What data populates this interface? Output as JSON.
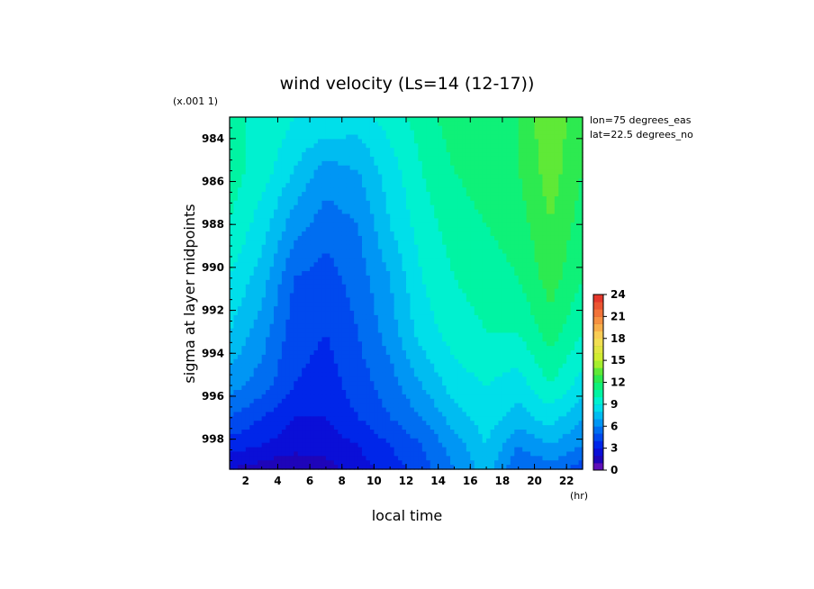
{
  "chart_data": {
    "type": "heatmap",
    "title": "wind velocity (Ls=14 (12-17))",
    "xlabel": "local time",
    "xunit": "(hr)",
    "ylabel": "sigma at layer midpoints",
    "yscale_note": "(x.001 1)",
    "annotations": [
      "lon=75 degrees_eas",
      "lat=22.5 degrees_no"
    ],
    "x": [
      1,
      3,
      5,
      7,
      9,
      11,
      13,
      15,
      17,
      19,
      21,
      23
    ],
    "y": [
      983.0,
      985.5,
      988.0,
      990.5,
      993.0,
      995.5,
      997.0,
      998.3,
      999.4
    ],
    "xlim": [
      1,
      23
    ],
    "ylim": [
      999.4,
      983.0
    ],
    "xticks": [
      "2",
      "4",
      "6",
      "8",
      "10",
      "12",
      "14",
      "16",
      "18",
      "20",
      "22"
    ],
    "yticks": [
      "984",
      "986",
      "988",
      "990",
      "992",
      "994",
      "996",
      "998"
    ],
    "values": [
      [
        10.0,
        10.0,
        9.0,
        9.0,
        8.5,
        9.5,
        10.5,
        11.5,
        11.5,
        12.0,
        14.0,
        12.0
      ],
      [
        10.5,
        9.5,
        8.0,
        6.5,
        7.0,
        8.5,
        10.0,
        11.0,
        11.5,
        12.0,
        13.5,
        12.0
      ],
      [
        10.0,
        8.5,
        6.5,
        5.5,
        6.0,
        8.0,
        9.5,
        10.5,
        11.0,
        11.5,
        13.0,
        11.5
      ],
      [
        9.0,
        7.5,
        5.0,
        4.5,
        5.5,
        7.0,
        9.0,
        10.0,
        10.5,
        11.0,
        12.5,
        11.0
      ],
      [
        8.0,
        6.5,
        4.5,
        4.0,
        5.0,
        6.5,
        8.5,
        9.5,
        10.0,
        10.0,
        11.5,
        10.0
      ],
      [
        6.5,
        5.5,
        4.0,
        3.5,
        4.5,
        5.5,
        7.0,
        8.5,
        9.0,
        8.5,
        10.0,
        8.5
      ],
      [
        5.0,
        4.0,
        3.0,
        3.0,
        4.0,
        5.0,
        6.0,
        7.5,
        8.5,
        7.5,
        8.5,
        7.0
      ],
      [
        3.5,
        3.0,
        2.5,
        2.5,
        3.0,
        4.0,
        5.0,
        6.5,
        8.0,
        6.0,
        7.0,
        6.0
      ],
      [
        2.0,
        1.5,
        1.0,
        1.5,
        2.5,
        3.5,
        4.5,
        6.0,
        7.5,
        5.0,
        5.5,
        4.5
      ]
    ],
    "colorbar": {
      "ticks": [
        "0",
        "3",
        "6",
        "9",
        "12",
        "15",
        "18",
        "21",
        "24"
      ],
      "range": [
        0,
        24
      ],
      "levels": 24
    },
    "grid": false
  }
}
